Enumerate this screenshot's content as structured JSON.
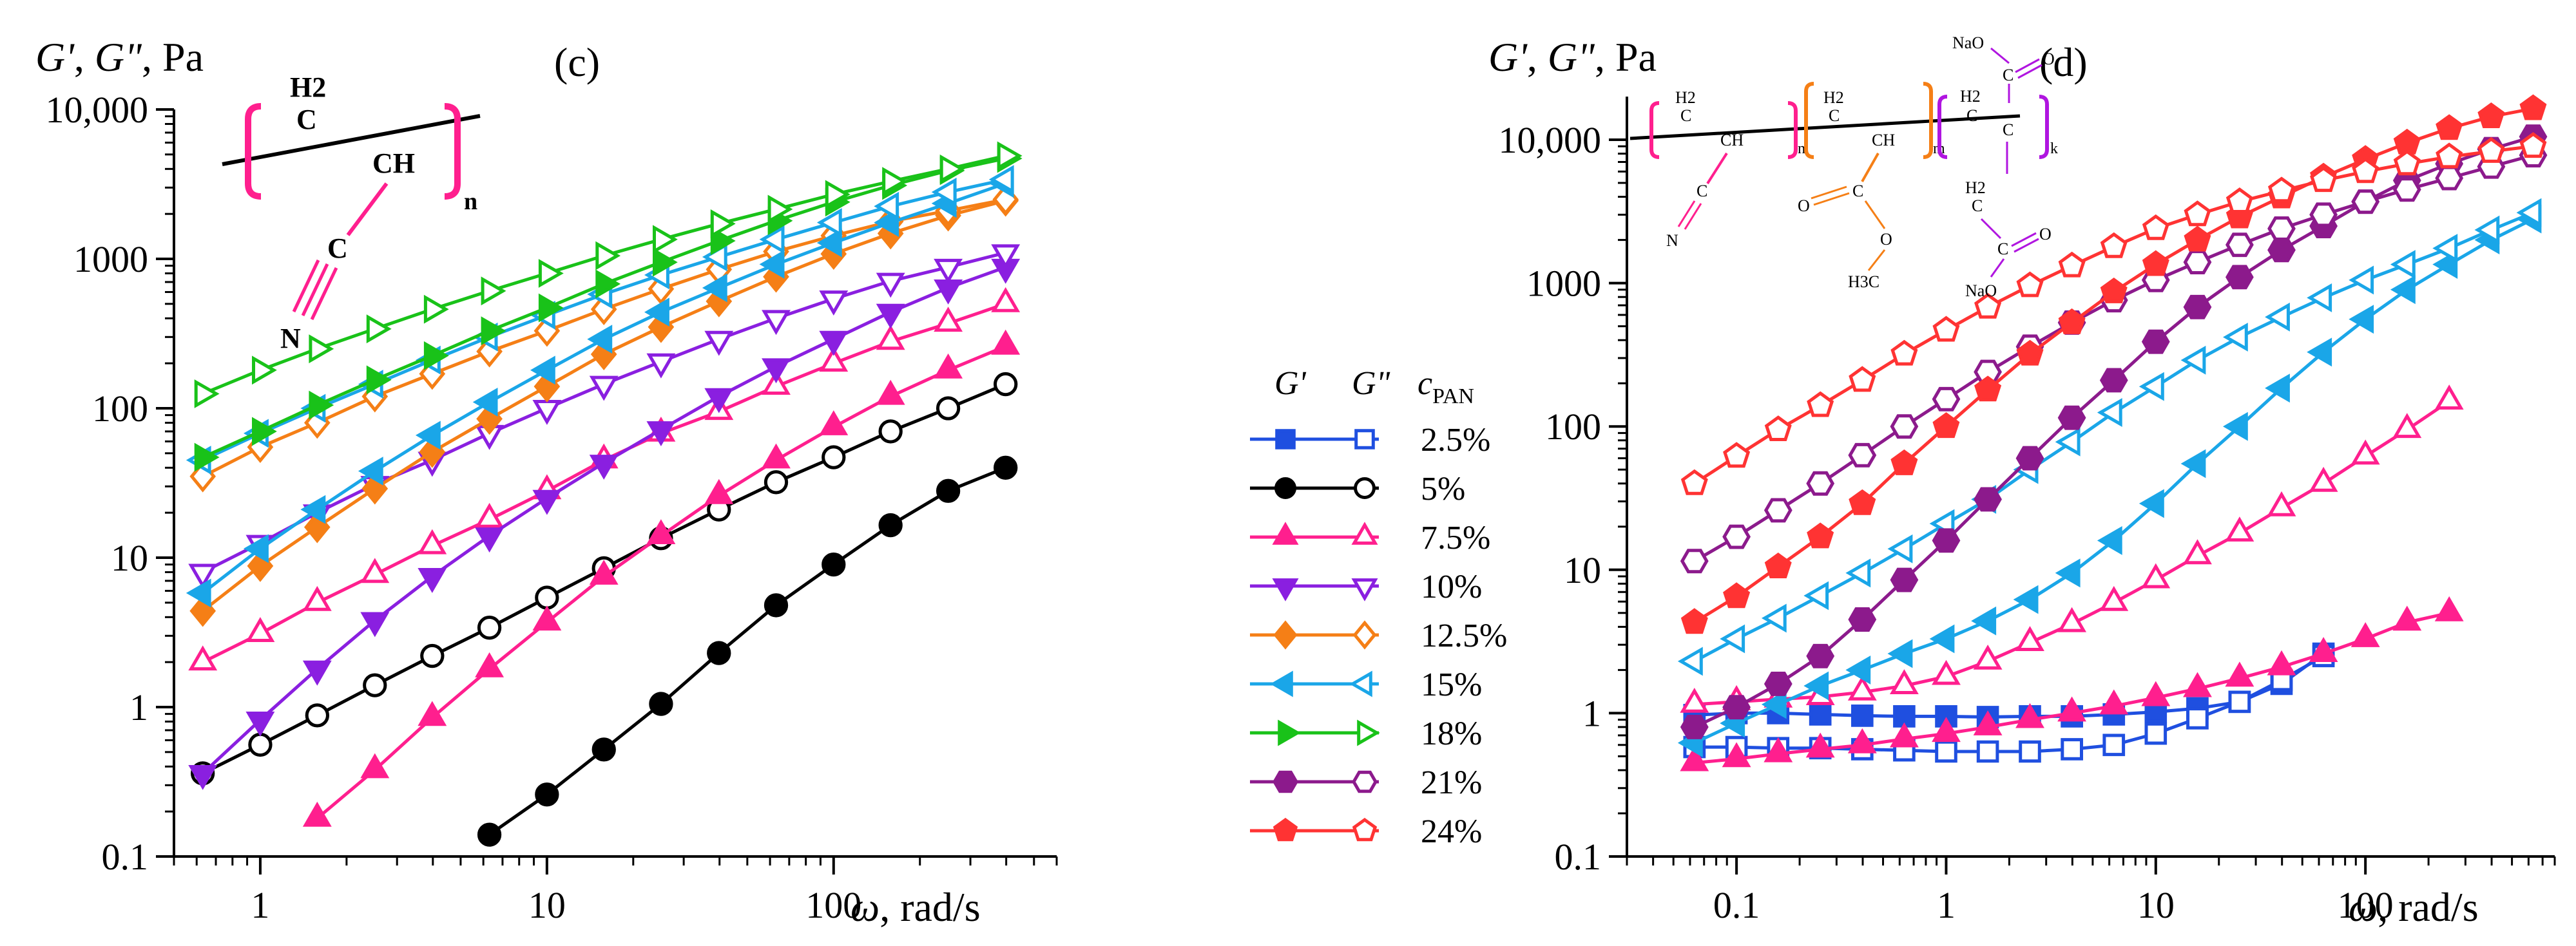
{
  "chart_data": [
    {
      "type": "line",
      "panel": "(c)",
      "ylabel_parts": [
        "G'",
        ", ",
        "G\"",
        ", Pa"
      ],
      "xlabel_parts": [
        "ω",
        ", rad/s"
      ],
      "xscale": "log",
      "yscale": "log",
      "xlim": [
        0.5,
        600
      ],
      "ylim": [
        0.1,
        10000
      ],
      "xticks": [
        1,
        10,
        100
      ],
      "xtick_labels": [
        "1",
        "10",
        "100"
      ],
      "yticks": [
        0.1,
        1,
        10,
        100,
        1000,
        10000
      ],
      "ytick_labels": [
        "0.1",
        "1",
        "10",
        "100",
        "1000",
        "10,000"
      ],
      "polymer": {
        "h2": "H2",
        "ch": "CH",
        "c": "C",
        "n_atom": "N",
        "sub": "n"
      },
      "series": [
        {
          "conc": "5%",
          "modulus": "G'",
          "filled": true,
          "x": [
            6.3,
            10,
            15.8,
            25,
            39.8,
            63,
            100,
            158,
            251,
            398
          ],
          "y": [
            0.14,
            0.26,
            0.52,
            1.05,
            2.3,
            4.8,
            9,
            16.5,
            28,
            40
          ]
        },
        {
          "conc": "5%",
          "modulus": "G\"",
          "filled": false,
          "x": [
            0.63,
            1,
            1.58,
            2.51,
            3.98,
            6.3,
            10,
            15.8,
            25,
            39.8,
            63,
            100,
            158,
            251,
            398
          ],
          "y": [
            0.36,
            0.56,
            0.88,
            1.4,
            2.2,
            3.4,
            5.4,
            8.5,
            13.5,
            21,
            32,
            47,
            70,
            100,
            145
          ]
        },
        {
          "conc": "7.5%",
          "modulus": "G'",
          "filled": true,
          "x": [
            1.58,
            2.51,
            3.98,
            6.3,
            10,
            15.8,
            25,
            39.8,
            63,
            100,
            158,
            251,
            398
          ],
          "y": [
            0.18,
            0.38,
            0.85,
            1.8,
            3.7,
            7.5,
            14,
            26,
            45,
            75,
            120,
            180,
            260
          ]
        },
        {
          "conc": "7.5%",
          "modulus": "G\"",
          "filled": false,
          "x": [
            0.63,
            1,
            1.58,
            2.51,
            3.98,
            6.3,
            10,
            15.8,
            25,
            39.8,
            63,
            100,
            158,
            251,
            398
          ],
          "y": [
            2,
            3.1,
            5,
            7.7,
            12,
            18,
            28,
            45,
            68,
            95,
            140,
            200,
            280,
            370,
            500
          ]
        },
        {
          "conc": "10%",
          "modulus": "G'",
          "filled": true,
          "x": [
            0.63,
            1,
            1.58,
            2.51,
            3.98,
            6.3,
            10,
            15.8,
            25,
            39.8,
            63,
            100,
            158,
            251,
            398
          ],
          "y": [
            0.36,
            0.82,
            1.8,
            3.8,
            7.5,
            14,
            25,
            43,
            72,
            120,
            190,
            290,
            440,
            640,
            880
          ]
        },
        {
          "conc": "10%",
          "modulus": "G\"",
          "filled": false,
          "x": [
            0.63,
            1,
            1.58,
            2.51,
            3.98,
            6.3,
            10,
            15.8,
            25,
            39.8,
            63,
            100,
            158,
            251,
            398
          ],
          "y": [
            8,
            12.5,
            20,
            31,
            45,
            68,
            100,
            145,
            205,
            290,
            400,
            540,
            710,
            880,
            1100
          ]
        },
        {
          "conc": "12.5%",
          "modulus": "G'",
          "filled": true,
          "x": [
            0.63,
            1,
            1.58,
            2.51,
            3.98,
            6.3,
            10,
            15.8,
            25,
            39.8,
            63,
            100,
            158,
            251,
            398
          ],
          "y": [
            4.4,
            8.8,
            16,
            29,
            51,
            85,
            140,
            230,
            350,
            520,
            760,
            1080,
            1480,
            1950,
            2450
          ]
        },
        {
          "conc": "12.5%",
          "modulus": "G\"",
          "filled": false,
          "x": [
            0.63,
            1,
            1.58,
            2.51,
            3.98,
            6.3,
            10,
            15.8,
            25,
            39.8,
            63,
            100,
            158,
            251,
            398
          ],
          "y": [
            35,
            55,
            80,
            120,
            170,
            240,
            330,
            460,
            630,
            850,
            1120,
            1430,
            1780,
            2100,
            2500
          ]
        },
        {
          "conc": "15%",
          "modulus": "G'",
          "filled": true,
          "x": [
            0.63,
            1,
            1.58,
            2.51,
            3.98,
            6.3,
            10,
            15.8,
            25,
            39.8,
            63,
            100,
            158,
            251,
            398
          ],
          "y": [
            5.8,
            11.5,
            21,
            38,
            66,
            110,
            180,
            290,
            440,
            640,
            920,
            1280,
            1750,
            2350,
            3200
          ]
        },
        {
          "conc": "15%",
          "modulus": "G\"",
          "filled": false,
          "x": [
            0.63,
            1,
            1.58,
            2.51,
            3.98,
            6.3,
            10,
            15.8,
            25,
            39.8,
            63,
            100,
            158,
            251,
            398
          ],
          "y": [
            45,
            68,
            100,
            145,
            210,
            300,
            420,
            580,
            780,
            1030,
            1350,
            1750,
            2250,
            2800,
            3400
          ]
        },
        {
          "conc": "18%",
          "modulus": "G'",
          "filled": true,
          "x": [
            0.63,
            1,
            1.58,
            2.51,
            3.98,
            6.3,
            10,
            15.8,
            25,
            39.8,
            63,
            100,
            158,
            251,
            398
          ],
          "y": [
            47,
            70,
            105,
            155,
            225,
            330,
            470,
            680,
            950,
            1320,
            1800,
            2400,
            3100,
            3900,
            4700
          ]
        },
        {
          "conc": "18%",
          "modulus": "G\"",
          "filled": false,
          "x": [
            0.63,
            1,
            1.58,
            2.51,
            3.98,
            6.3,
            10,
            15.8,
            25,
            39.8,
            63,
            100,
            158,
            251,
            398
          ],
          "y": [
            125,
            180,
            250,
            340,
            460,
            610,
            800,
            1050,
            1350,
            1720,
            2150,
            2700,
            3300,
            4000,
            4900
          ]
        }
      ]
    },
    {
      "type": "line",
      "panel": "(d)",
      "ylabel_parts": [
        "G'",
        ", ",
        "G\"",
        ", Pa"
      ],
      "xlabel_parts": [
        "ω",
        ", rad/s"
      ],
      "xscale": "log",
      "yscale": "log",
      "xlim": [
        0.03,
        800
      ],
      "ylim": [
        0.1,
        20000
      ],
      "xticks": [
        0.1,
        1,
        10,
        100
      ],
      "xtick_labels": [
        "0.1",
        "1",
        "10",
        "100"
      ],
      "yticks": [
        0.1,
        1,
        10,
        100,
        1000,
        10000
      ],
      "ytick_labels": [
        "0.1",
        "1",
        "10",
        "100",
        "1000",
        "10,000"
      ],
      "copolymer": {
        "h2": "H2",
        "ch": "CH",
        "c": "C",
        "n_atom": "N",
        "o_atom": "O",
        "ch3": "H3C",
        "naO": "NaO",
        "oNa": "NaO",
        "sub_n": "n",
        "sub_m": "m",
        "sub_k": "k"
      },
      "series": [
        {
          "conc": "2.5%",
          "modulus": "G'",
          "filled": true,
          "x": [
            0.063,
            0.1,
            0.158,
            0.251,
            0.398,
            0.631,
            1,
            1.58,
            2.51,
            3.98,
            6.31,
            10,
            15.8,
            25.1,
            39.8,
            63.1
          ],
          "y": [
            0.97,
            1.0,
            1.0,
            0.98,
            0.96,
            0.95,
            0.95,
            0.94,
            0.95,
            0.95,
            0.98,
            1.02,
            1.08,
            1.2,
            1.6,
            2.6
          ]
        },
        {
          "conc": "2.5%",
          "modulus": "G\"",
          "filled": false,
          "x": [
            0.063,
            0.1,
            0.158,
            0.251,
            0.398,
            0.631,
            1,
            1.58,
            2.51,
            3.98,
            6.31,
            10,
            15.8,
            25.1,
            39.8,
            63.1
          ],
          "y": [
            0.58,
            0.58,
            0.57,
            0.57,
            0.56,
            0.55,
            0.54,
            0.54,
            0.54,
            0.56,
            0.6,
            0.72,
            0.92,
            1.2,
            1.7,
            2.5
          ]
        },
        {
          "conc": "7.5%",
          "modulus": "G'",
          "filled": true,
          "x": [
            0.063,
            0.1,
            0.158,
            0.251,
            0.398,
            0.631,
            1,
            1.58,
            2.51,
            3.98,
            6.31,
            10,
            15.8,
            25.1,
            39.8,
            63.1,
            100,
            158,
            251
          ],
          "y": [
            0.45,
            0.48,
            0.52,
            0.56,
            0.6,
            0.66,
            0.72,
            0.8,
            0.9,
            1.0,
            1.12,
            1.28,
            1.48,
            1.75,
            2.1,
            2.6,
            3.3,
            4.3,
            5.0
          ]
        },
        {
          "conc": "7.5%",
          "modulus": "G\"",
          "filled": false,
          "x": [
            0.063,
            0.1,
            0.158,
            0.251,
            0.398,
            0.631,
            1,
            1.58,
            2.51,
            3.98,
            6.31,
            10,
            15.8,
            25.1,
            39.8,
            63.1,
            100,
            158,
            251
          ],
          "y": [
            1.15,
            1.2,
            1.25,
            1.3,
            1.4,
            1.55,
            1.8,
            2.3,
            3.1,
            4.2,
            5.9,
            8.5,
            12.5,
            18,
            27,
            40,
            62,
            95,
            150
          ]
        },
        {
          "conc": "15%",
          "modulus": "G'",
          "filled": true,
          "x": [
            0.063,
            0.1,
            0.158,
            0.251,
            0.398,
            0.631,
            1,
            1.58,
            2.51,
            3.98,
            6.31,
            10,
            15.8,
            25.1,
            39.8,
            63.1,
            100,
            158,
            251,
            398,
            631
          ],
          "y": [
            0.62,
            0.85,
            1.15,
            1.55,
            2.0,
            2.6,
            3.3,
            4.4,
            6.2,
            9.5,
            16,
            29,
            55,
            100,
            185,
            330,
            560,
            900,
            1350,
            2000,
            2800
          ]
        },
        {
          "conc": "15%",
          "modulus": "G\"",
          "filled": false,
          "x": [
            0.063,
            0.1,
            0.158,
            0.251,
            0.398,
            0.631,
            1,
            1.58,
            2.51,
            3.98,
            6.31,
            10,
            15.8,
            25.1,
            39.8,
            63.1,
            100,
            158,
            251,
            398,
            631
          ],
          "y": [
            2.3,
            3.3,
            4.6,
            6.6,
            9.5,
            14,
            21,
            31,
            50,
            78,
            125,
            190,
            290,
            420,
            580,
            790,
            1050,
            1350,
            1750,
            2350,
            3100
          ]
        },
        {
          "conc": "21%",
          "modulus": "G'",
          "filled": true,
          "x": [
            0.063,
            0.1,
            0.158,
            0.251,
            0.398,
            0.631,
            1,
            1.58,
            2.51,
            3.98,
            6.31,
            10,
            15.8,
            25.1,
            39.8,
            63.1,
            100,
            158,
            251,
            398,
            631
          ],
          "y": [
            0.8,
            1.1,
            1.6,
            2.5,
            4.5,
            8.5,
            16,
            31,
            60,
            115,
            210,
            390,
            680,
            1100,
            1700,
            2500,
            3700,
            5200,
            6800,
            8600,
            10500
          ]
        },
        {
          "conc": "21%",
          "modulus": "G\"",
          "filled": false,
          "x": [
            0.063,
            0.1,
            0.158,
            0.251,
            0.398,
            0.631,
            1,
            1.58,
            2.51,
            3.98,
            6.31,
            10,
            15.8,
            25.1,
            39.8,
            63.1,
            100,
            158,
            251,
            398,
            631
          ],
          "y": [
            11.5,
            17,
            26,
            40,
            63,
            100,
            155,
            240,
            360,
            530,
            760,
            1050,
            1400,
            1850,
            2400,
            3000,
            3700,
            4500,
            5400,
            6500,
            7800
          ]
        },
        {
          "conc": "24%",
          "modulus": "G'",
          "filled": true,
          "x": [
            0.063,
            0.1,
            0.158,
            0.251,
            0.398,
            0.631,
            1,
            1.58,
            2.51,
            3.98,
            6.31,
            10,
            15.8,
            25.1,
            39.8,
            63.1,
            100,
            158,
            251,
            398,
            631
          ],
          "y": [
            4.3,
            6.5,
            10.5,
            17,
            29,
            55,
            100,
            180,
            320,
            530,
            870,
            1350,
            2000,
            2900,
            4000,
            5500,
            7300,
            9500,
            12000,
            14500,
            16500
          ]
        },
        {
          "conc": "24%",
          "modulus": "G\"",
          "filled": false,
          "x": [
            0.063,
            0.1,
            0.158,
            0.251,
            0.398,
            0.631,
            1,
            1.58,
            2.51,
            3.98,
            6.31,
            10,
            15.8,
            25.1,
            39.8,
            63.1,
            100,
            158,
            251,
            398,
            631
          ],
          "y": [
            40,
            62,
            95,
            140,
            210,
            320,
            470,
            680,
            960,
            1320,
            1800,
            2400,
            3000,
            3700,
            4400,
            5200,
            6000,
            6800,
            7600,
            8300,
            9000
          ]
        }
      ]
    }
  ],
  "legend": {
    "col_gprime": "G'",
    "col_gdouble": "G\"",
    "col_c": "c",
    "col_c_sub": "PAN",
    "entries": [
      {
        "label": "2.5%",
        "color": "#1f4fe0",
        "marker": "square"
      },
      {
        "label": "5%",
        "color": "#000000",
        "marker": "circle"
      },
      {
        "label": "7.5%",
        "color": "#ff1f8e",
        "marker": "triangle-up"
      },
      {
        "label": "10%",
        "color": "#8a1fe0",
        "marker": "triangle-down"
      },
      {
        "label": "12.5%",
        "color": "#f57f16",
        "marker": "diamond"
      },
      {
        "label": "15%",
        "color": "#1aa6e8",
        "marker": "triangle-left"
      },
      {
        "label": "18%",
        "color": "#19c219",
        "marker": "triangle-right"
      },
      {
        "label": "21%",
        "color": "#8c1a8c",
        "marker": "hexagon"
      },
      {
        "label": "24%",
        "color": "#ff3333",
        "marker": "pentagon"
      }
    ]
  }
}
